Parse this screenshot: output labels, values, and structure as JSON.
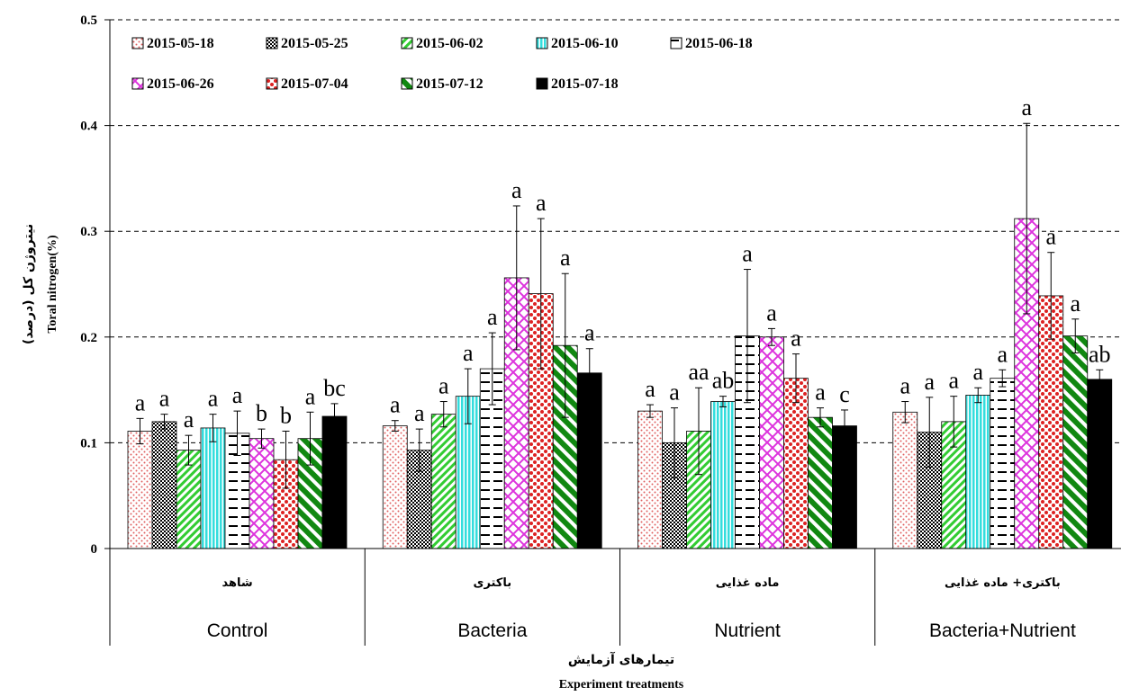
{
  "chart_data": {
    "type": "bar",
    "ylabel": "Toral nitrogen(%)",
    "ylabel_fa": "نیتروژن کل (درصد)",
    "xlabel": "Experiment treatments",
    "xlabel_fa": "تیمارهای آزمایش",
    "ylim": [
      0,
      0.5
    ],
    "yticks": [
      "0",
      "0.1",
      "0.2",
      "0.3",
      "0.4",
      "0.5"
    ],
    "ytick_values": [
      0,
      0.1,
      0.2,
      0.3,
      0.4,
      0.5
    ],
    "grid": "horizontal dashed",
    "legend_position": "top-left",
    "categories": [
      "Control",
      "Bacteria",
      "Nutrient",
      "Bacteria+Nutrient"
    ],
    "categories_fa": [
      "شاهد",
      "باکتری",
      "ماده غذایی",
      "باکتری+ ماده غذایی"
    ],
    "series": [
      {
        "name": "2015-05-18",
        "color": "#e06060",
        "pattern": "dots",
        "values": [
          0.111,
          0.116,
          0.13,
          0.129
        ],
        "errors": [
          0.012,
          0.005,
          0.006,
          0.01
        ],
        "letters": [
          "a",
          "a",
          "a",
          "a"
        ]
      },
      {
        "name": "2015-05-25",
        "color": "#000000",
        "pattern": "checker",
        "values": [
          0.12,
          0.093,
          0.1,
          0.11
        ],
        "errors": [
          0.007,
          0.02,
          0.033,
          0.033
        ],
        "letters": [
          "a",
          "a",
          "a",
          "a"
        ]
      },
      {
        "name": "2015-06-02",
        "color": "#33cc33",
        "pattern": "diag",
        "values": [
          0.093,
          0.127,
          0.111,
          0.12
        ],
        "errors": [
          0.014,
          0.012,
          0.041,
          0.024
        ],
        "letters": [
          "a",
          "a",
          "aa",
          "a"
        ]
      },
      {
        "name": "2015-06-10",
        "color": "#33dddd",
        "pattern": "vlines",
        "values": [
          0.114,
          0.144,
          0.139,
          0.145
        ],
        "errors": [
          0.013,
          0.026,
          0.005,
          0.007
        ],
        "letters": [
          "a",
          "a",
          "ab",
          "a"
        ]
      },
      {
        "name": "2015-06-18",
        "color": "#000000",
        "pattern": "dashes",
        "values": [
          0.109,
          0.17,
          0.201,
          0.161
        ],
        "errors": [
          0.021,
          0.034,
          0.063,
          0.008
        ],
        "letters": [
          "a",
          "a",
          "a",
          "a"
        ]
      },
      {
        "name": "2015-06-26",
        "color": "#dd33dd",
        "pattern": "lattice",
        "values": [
          0.104,
          0.256,
          0.2,
          0.312
        ],
        "errors": [
          0.009,
          0.068,
          0.008,
          0.09
        ],
        "letters": [
          "b",
          "a",
          "a",
          "a"
        ]
      },
      {
        "name": "2015-07-04",
        "color": "#dd2222",
        "pattern": "reddots",
        "values": [
          0.084,
          0.241,
          0.161,
          0.239
        ],
        "errors": [
          0.027,
          0.071,
          0.023,
          0.041
        ],
        "letters": [
          "b",
          "a",
          "a",
          "a"
        ]
      },
      {
        "name": "2015-07-12",
        "color": "#118811",
        "pattern": "thickdiag",
        "values": [
          0.104,
          0.192,
          0.124,
          0.201
        ],
        "errors": [
          0.025,
          0.068,
          0.009,
          0.016
        ],
        "letters": [
          "a",
          "a",
          "a",
          "a"
        ]
      },
      {
        "name": "2015-07-18",
        "color": "#000000",
        "pattern": "solid",
        "values": [
          0.125,
          0.166,
          0.116,
          0.16
        ],
        "errors": [
          0.012,
          0.023,
          0.015,
          0.009
        ],
        "letters": [
          "bc",
          "a",
          "c",
          "ab"
        ]
      }
    ]
  }
}
